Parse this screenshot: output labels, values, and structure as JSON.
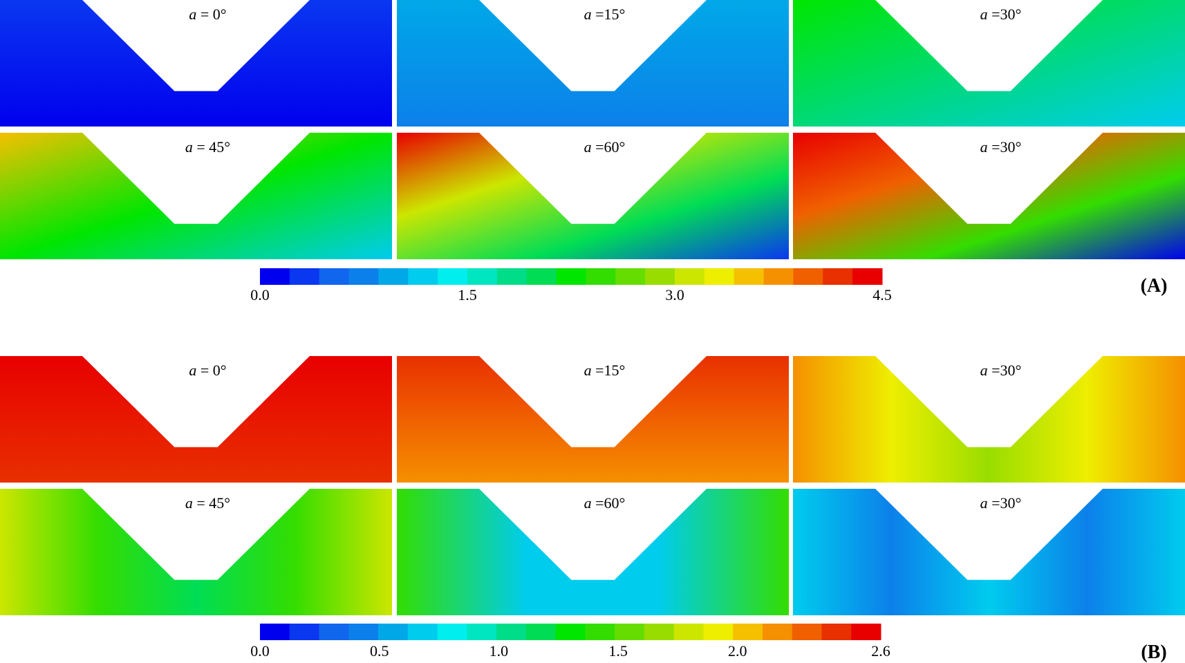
{
  "figure": {
    "part_labels": [
      "(A)",
      "(B)"
    ],
    "colormap": [
      "#0000ee",
      "#0a37f0",
      "#1166ee",
      "#0c80ea",
      "#00a8e8",
      "#00ccee",
      "#00eeee",
      "#00e6c0",
      "#00dd88",
      "#00dd55",
      "#00e600",
      "#33dd00",
      "#66dd00",
      "#99dd00",
      "#cce600",
      "#eeee00",
      "#f5c000",
      "#f59000",
      "#f06000",
      "#e83000",
      "#e80000"
    ],
    "panels": [
      {
        "id": "A",
        "colorbar": {
          "min": 0.0,
          "max": 4.5,
          "ticks": [
            "0.0",
            "1.5",
            "3.0",
            "4.5"
          ]
        },
        "cells": [
          {
            "var": "a",
            "value": "0°",
            "sep": " = ",
            "fill": [
              "#0a37f0",
              "#0000ee"
            ],
            "dir": "v"
          },
          {
            "var": "a",
            "value": "15°",
            "sep": " =",
            "fill": [
              "#00a8e8",
              "#0c80ea"
            ],
            "dir": "v"
          },
          {
            "var": "a",
            "value": "30°",
            "sep": " =",
            "fill": [
              "#00e600",
              "#00ccee"
            ],
            "dir": "d"
          },
          {
            "var": "a",
            "value": "45°",
            "sep": " = ",
            "fill": [
              "#f5c000",
              "#00e600",
              "#00ccee"
            ],
            "dir": "d"
          },
          {
            "var": "a",
            "value": "60°",
            "sep": " =",
            "fill": [
              "#e80000",
              "#cce600",
              "#00dd55",
              "#0a37f0"
            ],
            "dir": "d"
          },
          {
            "var": "a",
            "value": "30°",
            "sep": " =",
            "fill": [
              "#e80000",
              "#f06000",
              "#33dd00",
              "#0000ee"
            ],
            "dir": "d"
          }
        ]
      },
      {
        "id": "B",
        "colorbar": {
          "min": 0.0,
          "max": 2.6,
          "ticks": [
            "0.0",
            "0.5",
            "1.0",
            "1.5",
            "2.0",
            "2.6"
          ]
        },
        "cells": [
          {
            "var": "a",
            "value": "0°",
            "sep": " = ",
            "fill": [
              "#e80000",
              "#e83000"
            ],
            "dir": "v"
          },
          {
            "var": "a",
            "value": "15°",
            "sep": " =",
            "fill": [
              "#e83000",
              "#f06000",
              "#f59000"
            ],
            "dir": "v"
          },
          {
            "var": "a",
            "value": "30°",
            "sep": " =",
            "fill": [
              "#f59000",
              "#eeee00",
              "#99dd00",
              "#eeee00",
              "#f59000"
            ],
            "dir": "h"
          },
          {
            "var": "a",
            "value": "45°",
            "sep": " = ",
            "fill": [
              "#cce600",
              "#33dd00",
              "#00dd55",
              "#33dd00",
              "#cce600"
            ],
            "dir": "h"
          },
          {
            "var": "a",
            "value": "60°",
            "sep": " =",
            "fill": [
              "#33dd00",
              "#00ccee",
              "#00ccee",
              "#33dd00"
            ],
            "dir": "h"
          },
          {
            "var": "a",
            "value": "30°",
            "sep": " =",
            "fill": [
              "#00ccee",
              "#0c80ea",
              "#00ccee",
              "#0c80ea",
              "#00ccee"
            ],
            "dir": "h"
          }
        ]
      }
    ]
  }
}
